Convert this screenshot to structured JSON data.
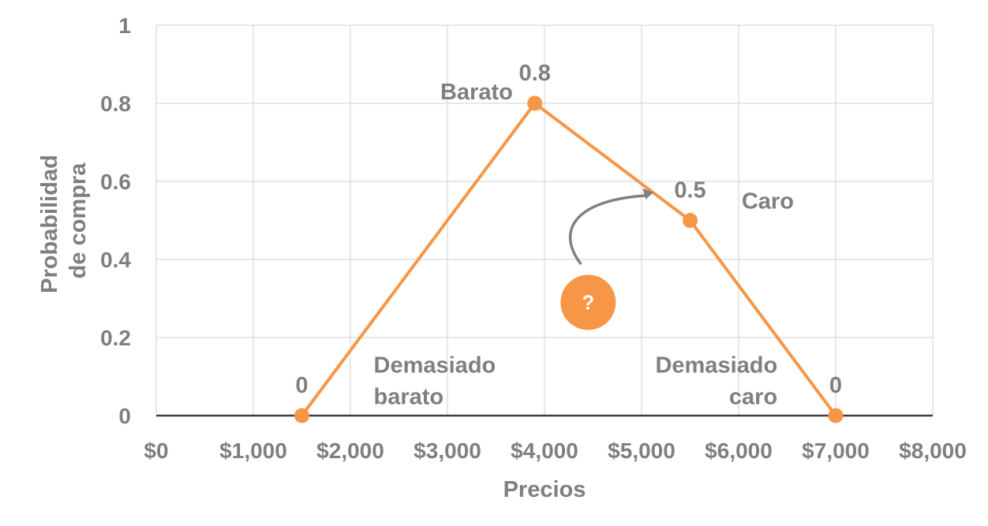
{
  "chart_data": {
    "type": "line",
    "xlabel": "Precios",
    "ylabel_lines": [
      "Probabilidad",
      "de compra"
    ],
    "xlim": [
      0,
      8000
    ],
    "ylim": [
      0,
      1
    ],
    "x_ticks": [
      {
        "value": 0,
        "label": "$0"
      },
      {
        "value": 1000,
        "label": "$1,000"
      },
      {
        "value": 2000,
        "label": "$2,000"
      },
      {
        "value": 3000,
        "label": "$3,000"
      },
      {
        "value": 4000,
        "label": "$4,000"
      },
      {
        "value": 5000,
        "label": "$5,000"
      },
      {
        "value": 6000,
        "label": "$6,000"
      },
      {
        "value": 7000,
        "label": "$7,000"
      },
      {
        "value": 8000,
        "label": "$8,000"
      }
    ],
    "y_ticks": [
      {
        "value": 0,
        "label": "0"
      },
      {
        "value": 0.2,
        "label": "0.2"
      },
      {
        "value": 0.4,
        "label": "0.4"
      },
      {
        "value": 0.6,
        "label": "0.6"
      },
      {
        "value": 0.8,
        "label": "0.8"
      },
      {
        "value": 1,
        "label": "1"
      }
    ],
    "grid": true,
    "series": [
      {
        "color": "#f79646",
        "points": [
          {
            "x": 1500,
            "y": 0,
            "label": "0"
          },
          {
            "x": 3900,
            "y": 0.8,
            "label": "0.8"
          },
          {
            "x": 5500,
            "y": 0.5,
            "label": "0.5"
          },
          {
            "x": 7000,
            "y": 0,
            "label": "0"
          }
        ]
      }
    ],
    "annotations": [
      {
        "lines": [
          "Barato"
        ],
        "anchor_x": 3300,
        "anchor_y": 0.81,
        "align": "middle"
      },
      {
        "lines": [
          "Caro"
        ],
        "anchor_x": 6300,
        "anchor_y": 0.53,
        "align": "middle"
      },
      {
        "lines": [
          "Demasiado",
          "barato"
        ],
        "anchor_x": 2240,
        "anchor_y": 0.11,
        "align": "start"
      },
      {
        "lines": [
          "Demasiado",
          "caro"
        ],
        "anchor_x": 6400,
        "anchor_y": 0.11,
        "align": "end"
      }
    ],
    "question_marker": {
      "label": "?",
      "color": "#f79646",
      "x": 4450,
      "y": 0.29
    },
    "arrow": {
      "color": "#808080",
      "from": {
        "x": 4370,
        "y": 0.39
      },
      "to": {
        "x": 5100,
        "y": 0.57
      }
    }
  }
}
